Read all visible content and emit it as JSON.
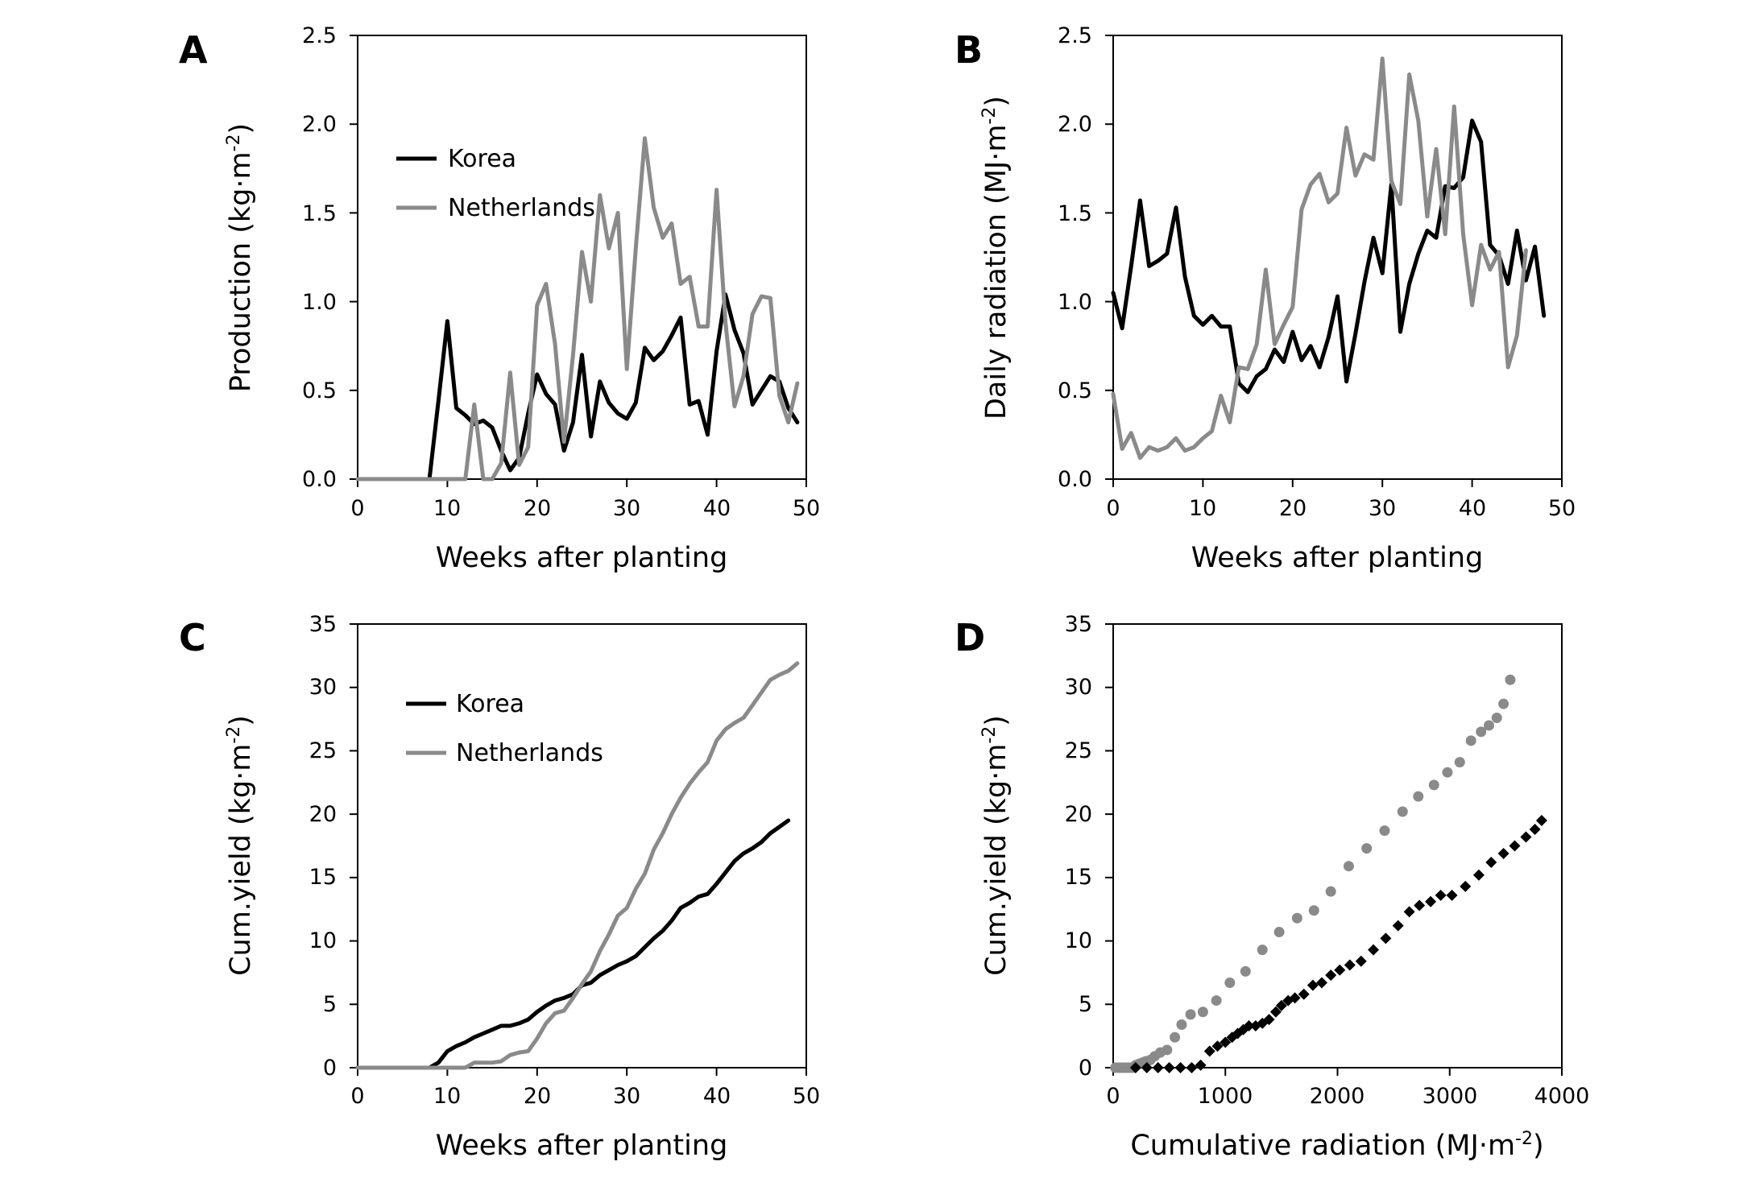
{
  "colors": {
    "korea": "#000000",
    "netherlands": "#8a8a8a",
    "axis": "#000000"
  },
  "chart_data": [
    {
      "id": "A",
      "panel_label": "A",
      "type": "line",
      "xlabel": "Weeks after planting",
      "ylabel_main": "Production (kg·m",
      "ylabel_sup": "-2",
      "ylabel_end": ")",
      "xlim": [
        0,
        50
      ],
      "ylim": [
        0,
        2.5
      ],
      "xticks": [
        0,
        10,
        20,
        30,
        40,
        50
      ],
      "xtick_labels": [
        "0",
        "10",
        "20",
        "30",
        "40",
        "50"
      ],
      "yticks": [
        0,
        0.5,
        1.0,
        1.5,
        2.0,
        2.5
      ],
      "ytick_labels": [
        "0.0",
        "0.5",
        "1.0",
        "1.5",
        "2.0",
        "2.5"
      ],
      "legend": [
        "Korea",
        "Netherlands"
      ],
      "legend_position": "upper-left",
      "series": [
        {
          "name": "Korea",
          "color": "korea",
          "x": [
            0,
            1,
            2,
            3,
            4,
            5,
            6,
            7,
            8,
            9,
            10,
            11,
            12,
            13,
            14,
            15,
            16,
            17,
            18,
            19,
            20,
            21,
            22,
            23,
            24,
            25,
            26,
            27,
            28,
            29,
            30,
            31,
            32,
            33,
            34,
            35,
            36,
            37,
            38,
            39,
            40,
            41,
            42,
            43,
            44,
            45,
            46,
            47,
            48,
            49
          ],
          "y": [
            0,
            0,
            0,
            0,
            0,
            0,
            0,
            0,
            0,
            0.44,
            0.89,
            0.4,
            0.36,
            0.31,
            0.33,
            0.29,
            0.16,
            0.05,
            0.12,
            0.37,
            0.59,
            0.48,
            0.42,
            0.16,
            0.32,
            0.7,
            0.24,
            0.55,
            0.43,
            0.37,
            0.34,
            0.43,
            0.74,
            0.67,
            0.72,
            0.81,
            0.91,
            0.42,
            0.44,
            0.25,
            0.72,
            1.04,
            0.84,
            0.71,
            0.42,
            0.5,
            0.58,
            0.55,
            0.4,
            0.32
          ]
        },
        {
          "name": "Netherlands",
          "color": "netherlands",
          "x": [
            0,
            1,
            2,
            3,
            4,
            5,
            6,
            7,
            8,
            9,
            10,
            11,
            12,
            13,
            14,
            15,
            16,
            17,
            18,
            19,
            20,
            21,
            22,
            23,
            24,
            25,
            26,
            27,
            28,
            29,
            30,
            31,
            32,
            33,
            34,
            35,
            36,
            37,
            38,
            39,
            40,
            41,
            42,
            43,
            44,
            45,
            46,
            47,
            48,
            49
          ],
          "y": [
            0,
            0,
            0,
            0,
            0,
            0,
            0,
            0,
            0,
            0,
            0,
            0,
            0,
            0.42,
            0,
            0,
            0.09,
            0.6,
            0.08,
            0.18,
            0.98,
            1.1,
            0.76,
            0.21,
            0.7,
            1.28,
            1.0,
            1.6,
            1.3,
            1.5,
            0.62,
            1.3,
            1.92,
            1.53,
            1.36,
            1.44,
            1.1,
            1.14,
            0.86,
            0.86,
            1.63,
            0.88,
            0.41,
            0.58,
            0.93,
            1.03,
            1.02,
            0.47,
            0.32,
            0.54
          ]
        }
      ]
    },
    {
      "id": "B",
      "panel_label": "B",
      "type": "line",
      "xlabel": "Weeks after planting",
      "ylabel_main": "Daily radiation (MJ·m",
      "ylabel_sup": "-2",
      "ylabel_end": ")",
      "xlim": [
        0,
        50
      ],
      "ylim": [
        0,
        2.5
      ],
      "xticks": [
        0,
        10,
        20,
        30,
        40,
        50
      ],
      "xtick_labels": [
        "0",
        "10",
        "20",
        "30",
        "40",
        "50"
      ],
      "yticks": [
        0,
        0.5,
        1.0,
        1.5,
        2.0,
        2.5
      ],
      "ytick_labels": [
        "0.0",
        "0.5",
        "1.0",
        "1.5",
        "2.0",
        "2.5"
      ],
      "series": [
        {
          "name": "Korea",
          "color": "korea",
          "x": [
            0,
            1,
            2,
            3,
            4,
            5,
            6,
            7,
            8,
            9,
            10,
            11,
            12,
            13,
            14,
            15,
            16,
            17,
            18,
            19,
            20,
            21,
            22,
            23,
            24,
            25,
            26,
            27,
            28,
            29,
            30,
            31,
            32,
            33,
            34,
            35,
            36,
            37,
            38,
            39,
            40,
            41,
            42,
            43,
            44,
            45,
            46,
            47,
            48
          ],
          "y": [
            1.05,
            0.85,
            1.2,
            1.57,
            1.2,
            1.23,
            1.27,
            1.53,
            1.14,
            0.92,
            0.87,
            0.92,
            0.86,
            0.86,
            0.54,
            0.49,
            0.58,
            0.62,
            0.73,
            0.66,
            0.83,
            0.67,
            0.75,
            0.63,
            0.8,
            1.03,
            0.55,
            0.82,
            1.11,
            1.36,
            1.16,
            1.66,
            0.83,
            1.1,
            1.27,
            1.4,
            1.36,
            1.65,
            1.64,
            1.7,
            2.02,
            1.9,
            1.32,
            1.26,
            1.1,
            1.4,
            1.12,
            1.31,
            0.92
          ]
        },
        {
          "name": "Netherlands",
          "color": "netherlands",
          "x": [
            0,
            1,
            2,
            3,
            4,
            5,
            6,
            7,
            8,
            9,
            10,
            11,
            12,
            13,
            14,
            15,
            16,
            17,
            18,
            19,
            20,
            21,
            22,
            23,
            24,
            25,
            26,
            27,
            28,
            29,
            30,
            31,
            32,
            33,
            34,
            35,
            36,
            37,
            38,
            39,
            40,
            41,
            42,
            43,
            44,
            45,
            46
          ],
          "y": [
            0.48,
            0.17,
            0.26,
            0.12,
            0.18,
            0.16,
            0.18,
            0.23,
            0.16,
            0.18,
            0.23,
            0.27,
            0.47,
            0.32,
            0.63,
            0.62,
            0.76,
            1.18,
            0.76,
            0.87,
            0.97,
            1.52,
            1.66,
            1.72,
            1.56,
            1.61,
            1.98,
            1.71,
            1.83,
            1.8,
            2.37,
            1.68,
            1.55,
            2.28,
            2.02,
            1.48,
            1.86,
            1.38,
            2.1,
            1.38,
            0.98,
            1.32,
            1.18,
            1.28,
            0.63,
            0.81,
            1.29
          ]
        }
      ]
    },
    {
      "id": "C",
      "panel_label": "C",
      "type": "line",
      "xlabel": "Weeks after planting",
      "ylabel_main": "Cum.yield (kg·m",
      "ylabel_sup": "-2",
      "ylabel_end": ")",
      "xlim": [
        0,
        50
      ],
      "ylim": [
        0,
        35
      ],
      "xticks": [
        0,
        10,
        20,
        30,
        40,
        50
      ],
      "xtick_labels": [
        "0",
        "10",
        "20",
        "30",
        "40",
        "50"
      ],
      "yticks": [
        0,
        5,
        10,
        15,
        20,
        25,
        30,
        35
      ],
      "ytick_labels": [
        "0",
        "5",
        "10",
        "15",
        "20",
        "25",
        "30",
        "35"
      ],
      "legend": [
        "Korea",
        "Netherlands"
      ],
      "legend_position": "upper-left",
      "series": [
        {
          "name": "Korea",
          "color": "korea",
          "x": [
            0,
            8,
            9,
            10,
            11,
            12,
            13,
            14,
            15,
            16,
            17,
            18,
            19,
            20,
            21,
            22,
            23,
            24,
            25,
            26,
            27,
            28,
            29,
            30,
            31,
            32,
            33,
            34,
            35,
            36,
            37,
            38,
            39,
            40,
            41,
            42,
            43,
            44,
            45,
            46,
            47,
            48
          ],
          "y": [
            0,
            0,
            0.4,
            1.3,
            1.7,
            2.0,
            2.4,
            2.7,
            3.0,
            3.3,
            3.3,
            3.5,
            3.8,
            4.4,
            4.9,
            5.3,
            5.5,
            5.8,
            6.5,
            6.7,
            7.3,
            7.7,
            8.1,
            8.4,
            8.8,
            9.5,
            10.2,
            10.8,
            11.6,
            12.6,
            13.0,
            13.5,
            13.7,
            14.5,
            15.4,
            16.3,
            16.9,
            17.3,
            17.8,
            18.5,
            19.0,
            19.5
          ]
        },
        {
          "name": "Netherlands",
          "color": "netherlands",
          "x": [
            0,
            12,
            13,
            14,
            15,
            16,
            17,
            18,
            19,
            20,
            21,
            22,
            23,
            24,
            25,
            26,
            27,
            28,
            29,
            30,
            31,
            32,
            33,
            34,
            35,
            36,
            37,
            38,
            39,
            40,
            41,
            42,
            43,
            44,
            45,
            46,
            47,
            48,
            49
          ],
          "y": [
            0,
            0,
            0.4,
            0.4,
            0.4,
            0.5,
            1.0,
            1.2,
            1.3,
            2.3,
            3.5,
            4.3,
            4.5,
            5.5,
            6.6,
            7.6,
            9.2,
            10.5,
            12.0,
            12.6,
            14.1,
            15.3,
            17.2,
            18.5,
            20.0,
            21.3,
            22.4,
            23.3,
            24.1,
            25.8,
            26.7,
            27.2,
            27.6,
            28.6,
            29.6,
            30.6,
            31.0,
            31.3,
            31.9
          ]
        }
      ]
    },
    {
      "id": "D",
      "panel_label": "D",
      "type": "scatter",
      "xlabel_main": "Cumulative radiation (MJ·m",
      "xlabel_sup": "-2",
      "xlabel_end": ")",
      "ylabel_main": "Cum.yield (kg·m",
      "ylabel_sup": "-2",
      "ylabel_end": ")",
      "xlim": [
        0,
        4000
      ],
      "ylim": [
        0,
        35
      ],
      "xticks": [
        0,
        1000,
        2000,
        3000,
        4000
      ],
      "xtick_labels": [
        "0",
        "1000",
        "2000",
        "3000",
        "4000"
      ],
      "yticks": [
        0,
        5,
        10,
        15,
        20,
        25,
        30,
        35
      ],
      "ytick_labels": [
        "0",
        "5",
        "10",
        "15",
        "20",
        "25",
        "30",
        "35"
      ],
      "series": [
        {
          "name": "Netherlands",
          "color": "netherlands",
          "marker": "circle",
          "x": [
            20,
            40,
            60,
            80,
            100,
            120,
            140,
            160,
            180,
            200,
            230,
            260,
            290,
            330,
            370,
            420,
            480,
            550,
            610,
            690,
            800,
            920,
            1040,
            1180,
            1330,
            1480,
            1640,
            1790,
            1940,
            2100,
            2260,
            2420,
            2580,
            2720,
            2860,
            2980,
            3090,
            3190,
            3280,
            3350,
            3420,
            3480,
            3540
          ],
          "y": [
            0,
            0,
            0,
            0,
            0,
            0,
            0,
            0,
            0,
            0.2,
            0.3,
            0.4,
            0.5,
            0.6,
            0.9,
            1.2,
            1.4,
            2.4,
            3.4,
            4.2,
            4.4,
            5.3,
            6.7,
            7.6,
            9.3,
            10.7,
            11.8,
            12.4,
            13.9,
            15.9,
            17.3,
            18.7,
            20.2,
            21.4,
            22.3,
            23.3,
            24.1,
            25.8,
            26.5,
            27.0,
            27.6,
            28.7,
            30.6
          ]
        },
        {
          "name": "Korea",
          "color": "korea",
          "marker": "diamond",
          "x": [
            200,
            300,
            400,
            500,
            600,
            700,
            780,
            860,
            930,
            1000,
            1060,
            1110,
            1160,
            1210,
            1270,
            1330,
            1390,
            1450,
            1500,
            1560,
            1620,
            1700,
            1780,
            1860,
            1940,
            2020,
            2110,
            2210,
            2320,
            2430,
            2540,
            2640,
            2730,
            2830,
            2920,
            3020,
            3140,
            3260,
            3370,
            3480,
            3580,
            3680,
            3760,
            3820
          ],
          "y": [
            0,
            0,
            0,
            0,
            0,
            0,
            0.2,
            1.3,
            1.7,
            2.0,
            2.4,
            2.7,
            3.0,
            3.3,
            3.3,
            3.5,
            3.8,
            4.4,
            4.9,
            5.3,
            5.5,
            5.8,
            6.5,
            6.7,
            7.3,
            7.7,
            8.1,
            8.4,
            9.3,
            10.2,
            11.2,
            12.3,
            12.8,
            13.1,
            13.6,
            13.6,
            14.3,
            15.2,
            16.2,
            16.9,
            17.5,
            18.2,
            18.8,
            19.5
          ]
        }
      ]
    }
  ]
}
